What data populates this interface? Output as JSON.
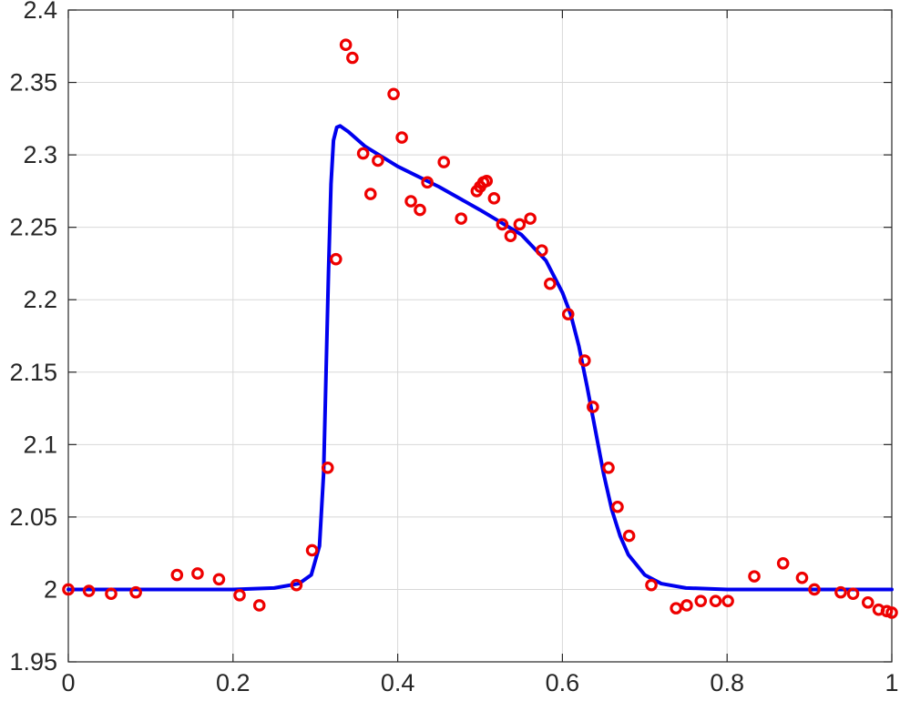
{
  "chart_data": {
    "type": "line",
    "title": "",
    "xlabel": "",
    "ylabel": "",
    "xlim": [
      0,
      1
    ],
    "ylim": [
      1.95,
      2.4
    ],
    "grid": true,
    "x_ticks": [
      "0",
      "0.2",
      "0.4",
      "0.6",
      "0.8",
      "1"
    ],
    "y_ticks": [
      "1.95",
      "2",
      "2.05",
      "2.1",
      "2.15",
      "2.2",
      "2.25",
      "2.3",
      "2.35",
      "2.4"
    ],
    "colors": {
      "line": "#0000ee",
      "markers": "#ee0000",
      "axis": "#262626",
      "grid": "#d8d8d8"
    },
    "series": [
      {
        "kind": "line",
        "x": [
          0,
          0.1,
          0.2,
          0.25,
          0.28,
          0.295,
          0.305,
          0.31,
          0.313,
          0.316,
          0.319,
          0.322,
          0.326,
          0.33,
          0.34,
          0.36,
          0.4,
          0.45,
          0.5,
          0.55,
          0.58,
          0.6,
          0.61,
          0.62,
          0.63,
          0.64,
          0.65,
          0.66,
          0.67,
          0.68,
          0.7,
          0.72,
          0.75,
          0.8,
          0.9,
          1.0
        ],
        "y": [
          2.0,
          2.0,
          2.0,
          2.001,
          2.004,
          2.01,
          2.03,
          2.08,
          2.15,
          2.22,
          2.28,
          2.31,
          2.319,
          2.32,
          2.316,
          2.306,
          2.292,
          2.278,
          2.262,
          2.245,
          2.227,
          2.205,
          2.19,
          2.168,
          2.14,
          2.11,
          2.08,
          2.055,
          2.037,
          2.024,
          2.01,
          2.004,
          2.001,
          2.0,
          2.0,
          2.0
        ]
      },
      {
        "kind": "scatter",
        "x": [
          0.0,
          0.025,
          0.052,
          0.082,
          0.132,
          0.157,
          0.183,
          0.208,
          0.232,
          0.277,
          0.296,
          0.315,
          0.325,
          0.337,
          0.345,
          0.358,
          0.367,
          0.376,
          0.395,
          0.405,
          0.416,
          0.427,
          0.436,
          0.456,
          0.477,
          0.496,
          0.5,
          0.504,
          0.508,
          0.517,
          0.527,
          0.537,
          0.548,
          0.561,
          0.575,
          0.585,
          0.607,
          0.627,
          0.637,
          0.656,
          0.667,
          0.681,
          0.708,
          0.738,
          0.751,
          0.768,
          0.786,
          0.801,
          0.833,
          0.868,
          0.891,
          0.906,
          0.938,
          0.953,
          0.971,
          0.984,
          0.994,
          1.0
        ],
        "y": [
          2.0,
          1.999,
          1.997,
          1.998,
          2.01,
          2.011,
          2.007,
          1.996,
          1.989,
          2.003,
          2.027,
          2.084,
          2.228,
          2.376,
          2.367,
          2.301,
          2.273,
          2.296,
          2.342,
          2.312,
          2.268,
          2.262,
          2.281,
          2.295,
          2.256,
          2.275,
          2.278,
          2.281,
          2.282,
          2.27,
          2.252,
          2.244,
          2.252,
          2.256,
          2.234,
          2.211,
          2.19,
          2.158,
          2.126,
          2.084,
          2.057,
          2.037,
          2.003,
          1.987,
          1.989,
          1.992,
          1.992,
          1.992,
          2.009,
          2.018,
          2.008,
          2.0,
          1.998,
          1.997,
          1.991,
          1.986,
          1.985,
          1.984
        ]
      }
    ]
  }
}
